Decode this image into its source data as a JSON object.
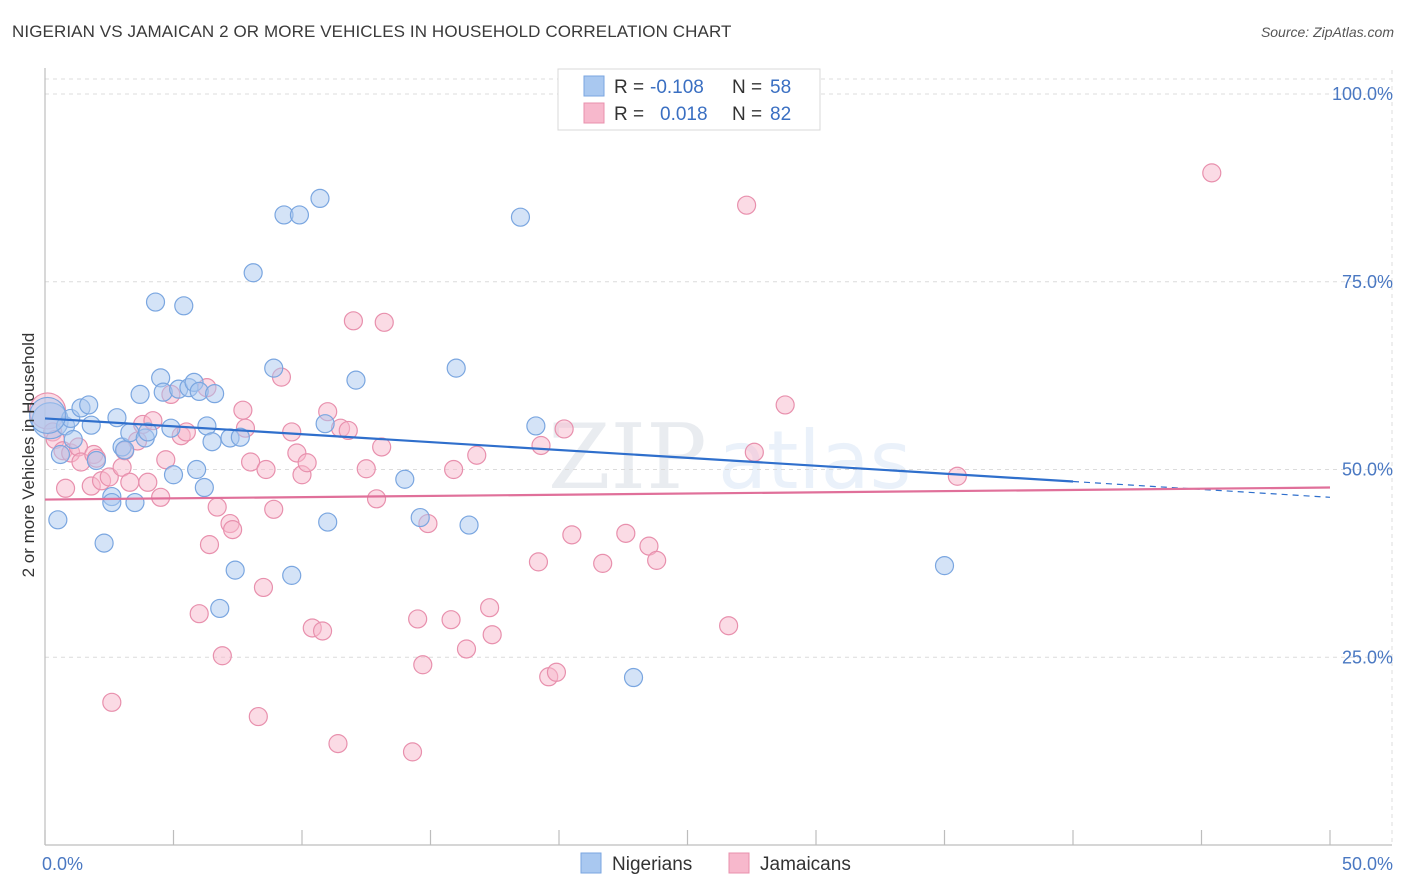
{
  "title": "NIGERIAN VS JAMAICAN 2 OR MORE VEHICLES IN HOUSEHOLD CORRELATION CHART",
  "source": "Source: ZipAtlas.com",
  "watermark": {
    "zip": "ZIP",
    "atlas": "atlas"
  },
  "legend": {
    "r_label": "R =",
    "n_label": "N =",
    "rows": [
      {
        "r": "-0.108",
        "n": "58",
        "color": "#a9c8f0"
      },
      {
        "r": "0.018",
        "n": "82",
        "color": "#f7b8cc"
      }
    ]
  },
  "colors": {
    "nigerian_fill": "#a9c8f0",
    "nigerian_stroke": "#7aa6e0",
    "nigerian_line": "#2f6fcc",
    "jamaican_fill": "#f7b8cc",
    "jamaican_stroke": "#e890ad",
    "jamaican_line": "#e0709a",
    "tick_text": "#4a78c2"
  },
  "chart_data": {
    "type": "scatter",
    "title": "NIGERIAN VS JAMAICAN 2 OR MORE VEHICLES IN HOUSEHOLD CORRELATION CHART",
    "xlabel": "",
    "ylabel": "2 or more Vehicles in Household",
    "xlim": [
      0,
      50
    ],
    "ylim": [
      0,
      102
    ],
    "x_tick_labels": [
      "0.0%",
      "50.0%"
    ],
    "y_ticks": [
      25,
      50,
      75,
      100
    ],
    "y_tick_labels": [
      "25.0%",
      "50.0%",
      "75.0%",
      "100.0%"
    ],
    "grid": true,
    "legend_position": "top-center",
    "series": [
      {
        "name": "Nigerians",
        "points": [
          [
            0.2,
            56.5
          ],
          [
            0.5,
            43.3
          ],
          [
            0.6,
            52.0
          ],
          [
            0.8,
            55.8
          ],
          [
            1.0,
            56.8
          ],
          [
            1.1,
            54.0
          ],
          [
            1.4,
            58.2
          ],
          [
            1.7,
            58.6
          ],
          [
            1.8,
            55.9
          ],
          [
            2.0,
            51.2
          ],
          [
            2.3,
            40.2
          ],
          [
            2.6,
            46.4
          ],
          [
            2.6,
            45.6
          ],
          [
            2.8,
            56.9
          ],
          [
            3.0,
            53.0
          ],
          [
            3.1,
            52.6
          ],
          [
            3.3,
            54.9
          ],
          [
            3.5,
            45.6
          ],
          [
            3.7,
            60.0
          ],
          [
            3.9,
            54.2
          ],
          [
            4.0,
            55.0
          ],
          [
            4.3,
            72.3
          ],
          [
            4.5,
            62.2
          ],
          [
            4.6,
            60.3
          ],
          [
            4.9,
            55.5
          ],
          [
            5.0,
            49.3
          ],
          [
            5.2,
            60.7
          ],
          [
            5.4,
            71.8
          ],
          [
            5.6,
            60.9
          ],
          [
            5.8,
            61.6
          ],
          [
            5.9,
            50.0
          ],
          [
            6.0,
            60.4
          ],
          [
            6.2,
            47.6
          ],
          [
            6.3,
            55.8
          ],
          [
            6.5,
            53.7
          ],
          [
            6.6,
            60.1
          ],
          [
            6.8,
            31.5
          ],
          [
            7.2,
            54.2
          ],
          [
            7.4,
            36.6
          ],
          [
            7.6,
            54.3
          ],
          [
            8.1,
            76.2
          ],
          [
            8.9,
            63.5
          ],
          [
            9.3,
            83.9
          ],
          [
            9.6,
            35.9
          ],
          [
            9.9,
            83.9
          ],
          [
            10.7,
            86.1
          ],
          [
            10.9,
            56.1
          ],
          [
            11.0,
            43.0
          ],
          [
            12.1,
            61.9
          ],
          [
            14.0,
            48.7
          ],
          [
            14.6,
            43.6
          ],
          [
            16.0,
            63.5
          ],
          [
            16.5,
            42.6
          ],
          [
            18.5,
            83.6
          ],
          [
            19.1,
            55.8
          ],
          [
            22.9,
            22.3
          ],
          [
            35.0,
            37.2
          ],
          [
            0.1,
            57.2
          ]
        ],
        "trend": {
          "x": [
            0,
            40
          ],
          "y": [
            56.8,
            48.4
          ]
        },
        "trend_dashed": {
          "x": [
            40,
            50
          ],
          "y": [
            48.4,
            46.3
          ]
        }
      },
      {
        "name": "Jamaicans",
        "points": [
          [
            0.1,
            57.8
          ],
          [
            0.3,
            55.0
          ],
          [
            0.4,
            54.0
          ],
          [
            0.7,
            52.5
          ],
          [
            0.8,
            47.5
          ],
          [
            1.0,
            52.2
          ],
          [
            1.3,
            53.0
          ],
          [
            1.4,
            51.0
          ],
          [
            1.8,
            47.8
          ],
          [
            1.9,
            52.0
          ],
          [
            2.0,
            51.5
          ],
          [
            2.2,
            48.5
          ],
          [
            2.5,
            49.0
          ],
          [
            2.6,
            19.0
          ],
          [
            3.0,
            50.3
          ],
          [
            3.1,
            52.5
          ],
          [
            3.3,
            48.3
          ],
          [
            3.6,
            53.8
          ],
          [
            3.8,
            56.0
          ],
          [
            4.0,
            48.3
          ],
          [
            4.2,
            56.5
          ],
          [
            4.5,
            46.3
          ],
          [
            4.7,
            51.3
          ],
          [
            4.9,
            60.0
          ],
          [
            5.3,
            54.5
          ],
          [
            5.5,
            55.0
          ],
          [
            6.0,
            30.8
          ],
          [
            6.3,
            60.9
          ],
          [
            6.4,
            40.0
          ],
          [
            6.7,
            45.0
          ],
          [
            6.9,
            25.2
          ],
          [
            7.2,
            42.8
          ],
          [
            7.3,
            42.0
          ],
          [
            7.7,
            57.9
          ],
          [
            7.8,
            55.5
          ],
          [
            8.0,
            51.0
          ],
          [
            8.3,
            17.1
          ],
          [
            8.5,
            34.3
          ],
          [
            8.6,
            50.0
          ],
          [
            8.9,
            44.7
          ],
          [
            9.2,
            62.3
          ],
          [
            9.6,
            55.0
          ],
          [
            9.8,
            52.2
          ],
          [
            10.0,
            49.3
          ],
          [
            10.2,
            50.9
          ],
          [
            10.4,
            28.9
          ],
          [
            10.8,
            28.5
          ],
          [
            11.0,
            57.7
          ],
          [
            11.4,
            13.5
          ],
          [
            11.5,
            55.5
          ],
          [
            11.8,
            55.2
          ],
          [
            12.0,
            69.8
          ],
          [
            12.5,
            50.1
          ],
          [
            12.9,
            46.1
          ],
          [
            13.1,
            53.0
          ],
          [
            13.2,
            69.6
          ],
          [
            14.3,
            12.4
          ],
          [
            14.5,
            30.1
          ],
          [
            14.7,
            24.0
          ],
          [
            14.9,
            42.8
          ],
          [
            15.8,
            30.0
          ],
          [
            15.9,
            50.0
          ],
          [
            16.4,
            26.1
          ],
          [
            16.8,
            51.9
          ],
          [
            17.3,
            31.6
          ],
          [
            17.4,
            28.0
          ],
          [
            19.2,
            37.7
          ],
          [
            19.3,
            53.2
          ],
          [
            19.6,
            22.4
          ],
          [
            19.9,
            23.0
          ],
          [
            20.2,
            55.4
          ],
          [
            20.5,
            41.3
          ],
          [
            21.7,
            37.5
          ],
          [
            22.6,
            41.5
          ],
          [
            23.5,
            39.8
          ],
          [
            23.8,
            37.9
          ],
          [
            26.6,
            29.2
          ],
          [
            27.3,
            85.2
          ],
          [
            27.6,
            52.3
          ],
          [
            28.8,
            58.6
          ],
          [
            35.5,
            49.1
          ],
          [
            45.4,
            89.5
          ]
        ],
        "trend": {
          "x": [
            0,
            50
          ],
          "y": [
            46.0,
            47.6
          ]
        }
      }
    ]
  }
}
